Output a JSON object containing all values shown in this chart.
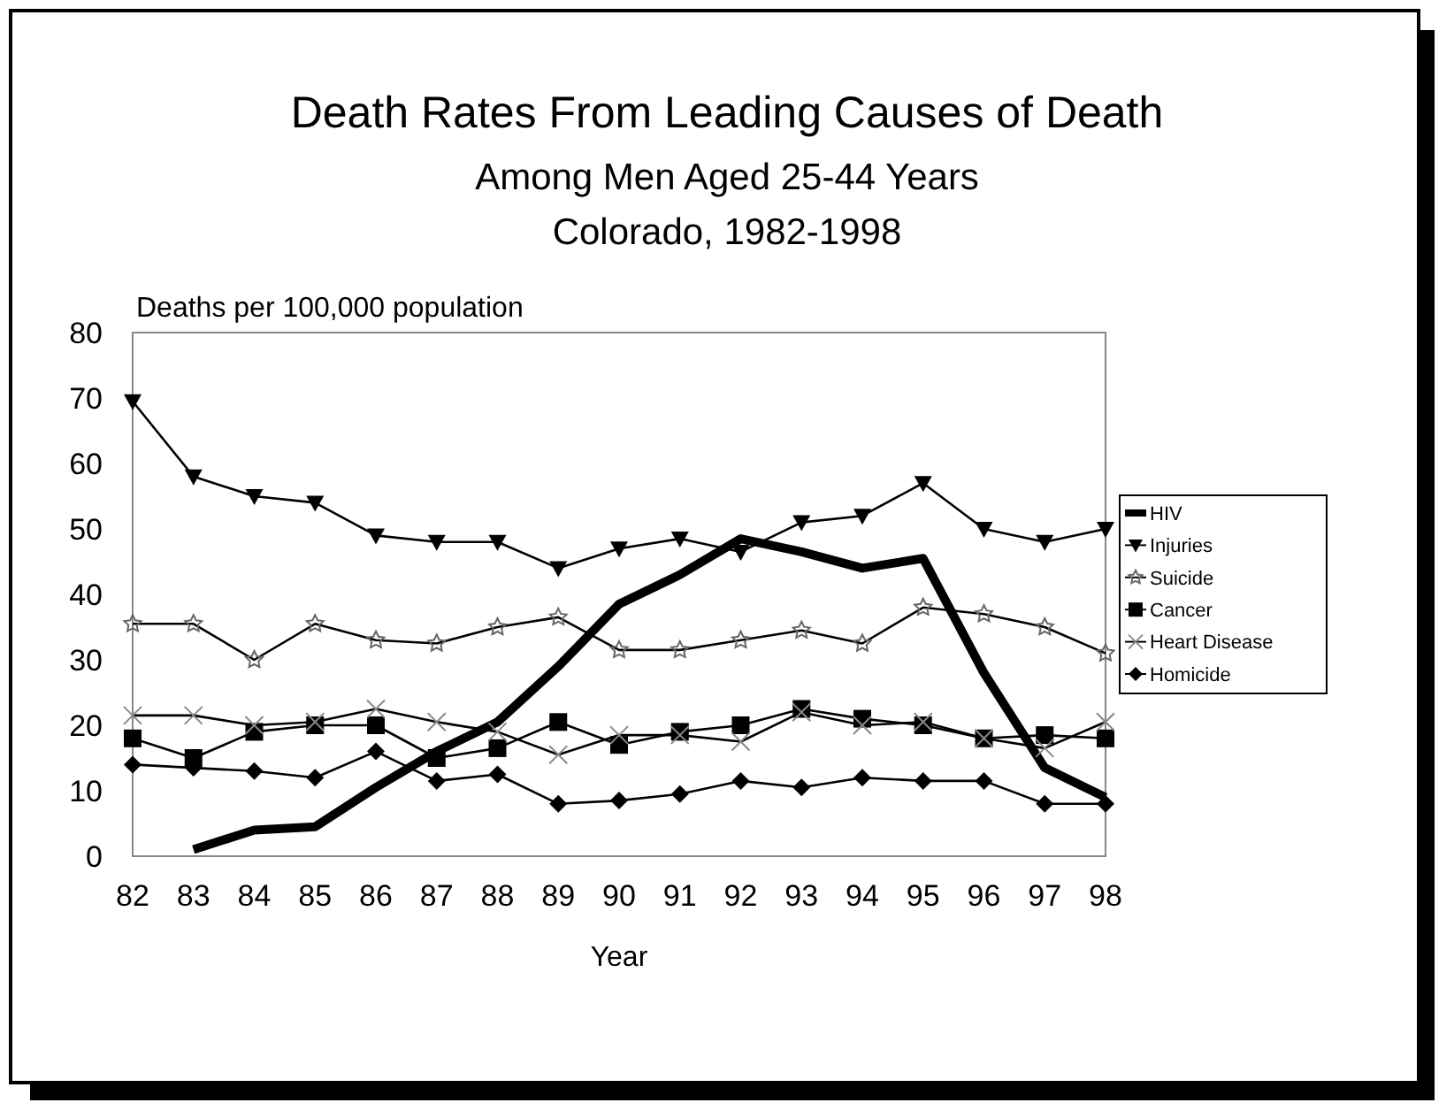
{
  "chart_data": {
    "type": "line",
    "title": "Death Rates From Leading Causes of Death",
    "subtitle": "Among Men Aged 25-44 Years\nColorado, 1982-1998",
    "xlabel": "Year",
    "ylabel": "Deaths per 100,000 population",
    "categories": [
      "82",
      "83",
      "84",
      "85",
      "86",
      "87",
      "88",
      "89",
      "90",
      "91",
      "92",
      "93",
      "94",
      "95",
      "96",
      "97",
      "98"
    ],
    "ylim": [
      0,
      80
    ],
    "yticks": [
      0,
      10,
      20,
      30,
      40,
      50,
      60,
      70,
      80
    ],
    "grid": false,
    "legend": "right",
    "series": [
      {
        "name": "HIV",
        "color": "#000000",
        "marker": "none",
        "values": [
          null,
          1,
          4,
          4.5,
          10.5,
          16,
          20.5,
          29,
          38.5,
          43,
          48.5,
          46.5,
          44,
          45.5,
          28,
          13.5,
          9
        ]
      },
      {
        "name": "Injuries",
        "color": "#000000",
        "marker": "triangle",
        "values": [
          69.5,
          58,
          55,
          54,
          49,
          48,
          48,
          44,
          47,
          48.5,
          46.5,
          51,
          52,
          57,
          50,
          48,
          50
        ]
      },
      {
        "name": "Suicide",
        "color": "#000000",
        "marker": "star",
        "values": [
          35.5,
          35.5,
          30,
          35.5,
          33,
          32.5,
          35,
          36.5,
          31.5,
          31.5,
          33,
          34.5,
          32.5,
          38,
          37,
          35,
          31
        ]
      },
      {
        "name": "Cancer",
        "color": "#000000",
        "marker": "square",
        "values": [
          18,
          15,
          19,
          20,
          20,
          15,
          16.5,
          20.5,
          17,
          19,
          20,
          22.5,
          21,
          20,
          18,
          18.5,
          18
        ]
      },
      {
        "name": "Heart Disease",
        "color": "#000000",
        "marker": "cross",
        "values": [
          21.5,
          21.5,
          20,
          20.5,
          22.5,
          20.5,
          19,
          15.5,
          18.5,
          18.5,
          17.5,
          22,
          20,
          20.5,
          18,
          16.5,
          20.5
        ]
      },
      {
        "name": "Homicide",
        "color": "#000000",
        "marker": "diamond",
        "values": [
          14,
          13.5,
          13,
          12,
          16,
          11.5,
          12.5,
          8,
          8.5,
          9.5,
          11.5,
          10.5,
          12,
          11.5,
          11.5,
          8,
          8
        ]
      }
    ]
  }
}
